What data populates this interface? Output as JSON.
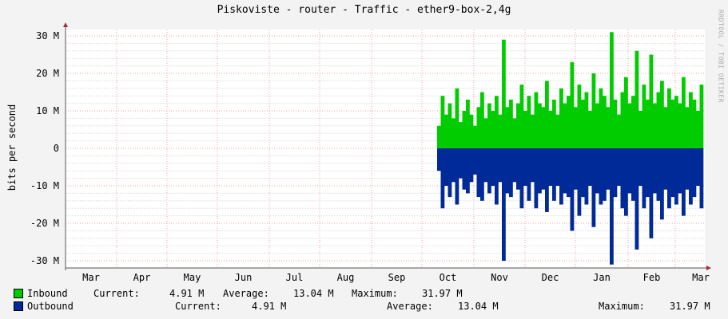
{
  "chart_data": {
    "type": "area",
    "title": "Piskoviste - router - Traffic - ether9-box-2,4g",
    "ylabel": "bits per second",
    "credit": "RRDTOOL / TOBI OETIKER",
    "ylim": [
      -32,
      32
    ],
    "yunit": "M",
    "yticks": [
      {
        "v": 30,
        "label": "30 M"
      },
      {
        "v": 20,
        "label": "20 M"
      },
      {
        "v": 10,
        "label": "10 M"
      },
      {
        "v": 0,
        "label": "0"
      },
      {
        "v": -10,
        "label": "-10 M"
      },
      {
        "v": -20,
        "label": "-20 M"
      },
      {
        "v": -30,
        "label": "-30 M"
      }
    ],
    "xticks": [
      "Mar",
      "Apr",
      "May",
      "Jun",
      "Jul",
      "Aug",
      "Sep",
      "Oct",
      "Nov",
      "Dec",
      "Jan",
      "Feb",
      "Mar"
    ],
    "grid": true,
    "data_start": "late Sep",
    "data_end": "Mar",
    "series": [
      {
        "name": "Inbound",
        "color": "#00cc00",
        "sign": 1,
        "values": [
          6,
          14,
          9,
          12,
          8,
          16,
          7,
          10,
          13,
          9,
          6,
          11,
          15,
          8,
          12,
          10,
          14,
          9,
          29,
          11,
          13,
          8,
          12,
          17,
          10,
          14,
          9,
          15,
          12,
          11,
          18,
          10,
          13,
          9,
          16,
          12,
          14,
          23,
          11,
          17,
          13,
          15,
          10,
          20,
          12,
          16,
          14,
          11,
          31,
          13,
          9,
          15,
          19,
          12,
          14,
          26,
          10,
          17,
          13,
          25,
          12,
          15,
          18,
          11,
          16,
          13,
          14,
          12,
          19,
          11,
          15,
          13,
          10,
          17
        ]
      },
      {
        "name": "Outbound",
        "color": "#002a97",
        "sign": -1,
        "values": [
          6,
          16,
          10,
          13,
          9,
          15,
          8,
          11,
          12,
          9,
          7,
          13,
          14,
          9,
          12,
          10,
          15,
          9,
          30,
          12,
          13,
          9,
          11,
          16,
          10,
          14,
          9,
          16,
          12,
          11,
          17,
          10,
          14,
          10,
          15,
          12,
          13,
          22,
          11,
          18,
          13,
          15,
          10,
          21,
          12,
          15,
          14,
          11,
          31,
          13,
          10,
          16,
          18,
          12,
          14,
          27,
          10,
          16,
          13,
          24,
          12,
          14,
          19,
          11,
          16,
          13,
          15,
          12,
          18,
          11,
          15,
          13,
          10,
          16
        ]
      }
    ]
  },
  "legend": [
    {
      "name": "Inbound",
      "color": "#00cc00",
      "current_label": "Current:",
      "current": "4.91 M",
      "average_label": "Average:",
      "average": "13.04 M",
      "maximum_label": "Maximum:",
      "maximum": "31.97 M"
    },
    {
      "name": "Outbound",
      "color": "#002a97",
      "current_label": "Current:",
      "current": "4.91 M",
      "average_label": "Average:",
      "average": "13.04 M",
      "maximum_label": "Maximum:",
      "maximum": "31.97 M"
    }
  ]
}
